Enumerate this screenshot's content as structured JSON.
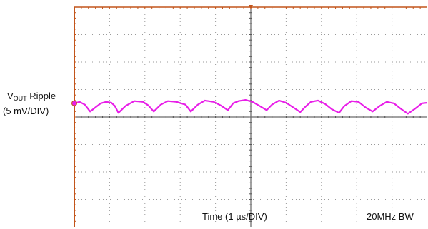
{
  "chart_data": {
    "type": "line",
    "title": "",
    "channel_label": {
      "prefix": "V",
      "subscript": "OUT",
      "suffix": " Ripple"
    },
    "channel_scale_label": "(5 mV/DIV)",
    "xlabel": "Time (1 µs/DIV)",
    "bandwidth_label": "20MHz BW",
    "x_divisions": 10,
    "y_divisions": 8,
    "xlim": [
      0,
      10
    ],
    "ylim": [
      -4,
      4
    ],
    "x_unit": "µs",
    "y_unit": "mV/DIV",
    "grid": true,
    "ground_marker_level_div": 0.5,
    "trigger_marker_time_div": 5,
    "series": [
      {
        "color": "#e81ee8",
        "x": [
          0,
          0.15,
          0.3,
          0.45,
          0.6,
          0.75,
          0.9,
          1.05,
          1.15,
          1.25,
          1.45,
          1.7,
          1.95,
          2.1,
          2.25,
          2.45,
          2.65,
          2.9,
          3.15,
          3.3,
          3.5,
          3.7,
          3.95,
          4.15,
          4.35,
          4.5,
          4.65,
          4.85,
          5.05,
          5.25,
          5.45,
          5.6,
          5.8,
          6.0,
          6.2,
          6.4,
          6.55,
          6.7,
          6.9,
          7.1,
          7.3,
          7.5,
          7.65,
          7.85,
          8.05,
          8.25,
          8.45,
          8.65,
          8.85,
          9.05,
          9.25,
          9.45,
          9.65,
          9.85,
          10
        ],
        "y": [
          0.5,
          0.55,
          0.45,
          0.2,
          0.35,
          0.5,
          0.55,
          0.52,
          0.4,
          0.15,
          0.4,
          0.58,
          0.55,
          0.42,
          0.2,
          0.45,
          0.58,
          0.55,
          0.45,
          0.2,
          0.45,
          0.6,
          0.55,
          0.42,
          0.25,
          0.5,
          0.58,
          0.62,
          0.55,
          0.4,
          0.25,
          0.45,
          0.6,
          0.52,
          0.35,
          0.18,
          0.38,
          0.55,
          0.6,
          0.48,
          0.28,
          0.15,
          0.4,
          0.58,
          0.55,
          0.35,
          0.2,
          0.4,
          0.55,
          0.5,
          0.3,
          0.12,
          0.3,
          0.5,
          0.52
        ]
      }
    ]
  }
}
